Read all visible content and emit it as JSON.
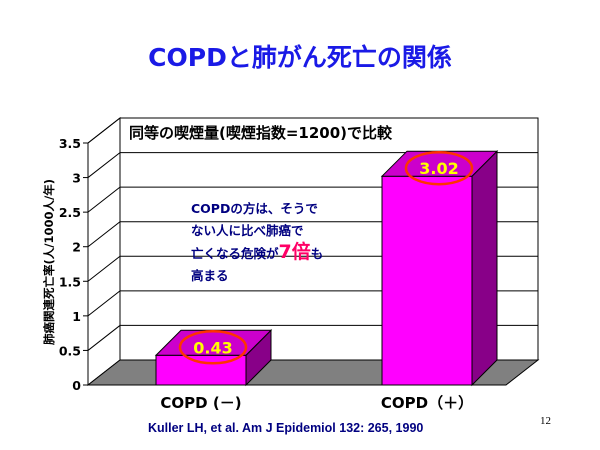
{
  "title": "COPDと肺がん死亡の関係",
  "chart_data": {
    "type": "bar",
    "title": "同等の喫煙量(喫煙指数=1200)で比較",
    "ylabel": "肺癌関連死亡率(人/1000人/年)",
    "xlabel": "",
    "ylim": [
      0,
      3.5
    ],
    "yticks": [
      0,
      0.5,
      1,
      1.5,
      2,
      2.5,
      3,
      3.5
    ],
    "ytick_labels": [
      "0",
      "0.5",
      "1",
      "1.5",
      "2",
      "2.5",
      "3",
      "3.5"
    ],
    "categories": [
      "COPD (－)",
      "COPD（＋）"
    ],
    "values": [
      0.43,
      3.02
    ],
    "value_labels": [
      "0.43",
      "3.02"
    ],
    "grid": true,
    "style": "3d",
    "colors": {
      "bar_front": "#ff00ff",
      "bar_side": "#880088",
      "bar_top": "#cc00cc",
      "floor": "#808080",
      "value_label": "#ffff00",
      "highlight_circle": "#ff3300",
      "annotation_text": "#000080",
      "annotation_emphasis": "#ff0066"
    },
    "annotation": {
      "line1": "COPDの方は、そうで",
      "line2": "ない人に比べ肺癌で",
      "line3_before": "亡くなる危険が",
      "line3_emphasis": "7倍",
      "line3_after": "も",
      "line4": "高まる"
    }
  },
  "citation": "Kuller LH, et al.  Am J Epidemiol 132: 265, 1990",
  "page_number": "12"
}
